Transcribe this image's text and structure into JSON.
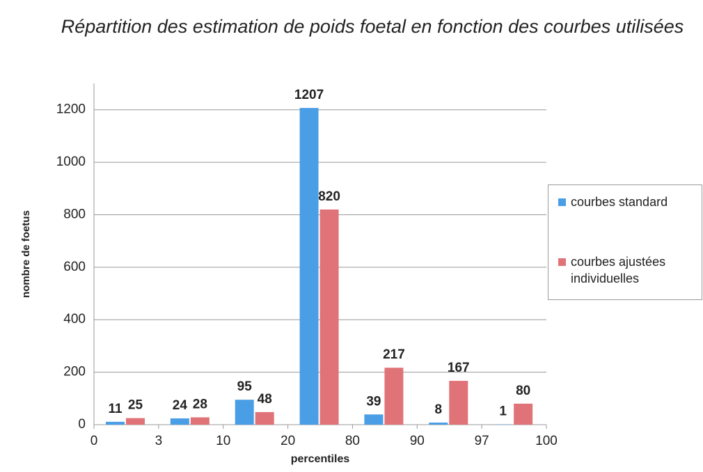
{
  "chart_data": {
    "type": "histogram",
    "title": "Répartition des estimation de poids foetal en fonction des courbes utilisées",
    "xlabel": "percentiles",
    "ylabel": "nombre de foetus",
    "bins": [
      0,
      3,
      10,
      20,
      80,
      90,
      97,
      100
    ],
    "series": [
      {
        "name": "courbes standard",
        "color": "#4a9ee6",
        "values": [
          11,
          24,
          95,
          1207,
          39,
          8,
          1
        ]
      },
      {
        "name": "courbes ajustées individuelles",
        "color": "#e07378",
        "values": [
          25,
          28,
          48,
          820,
          217,
          167,
          80
        ]
      }
    ],
    "ylim": [
      0,
      1300
    ],
    "yticks": [
      0,
      200,
      400,
      600,
      800,
      1000,
      1200
    ],
    "grid": true,
    "legend": "right"
  }
}
